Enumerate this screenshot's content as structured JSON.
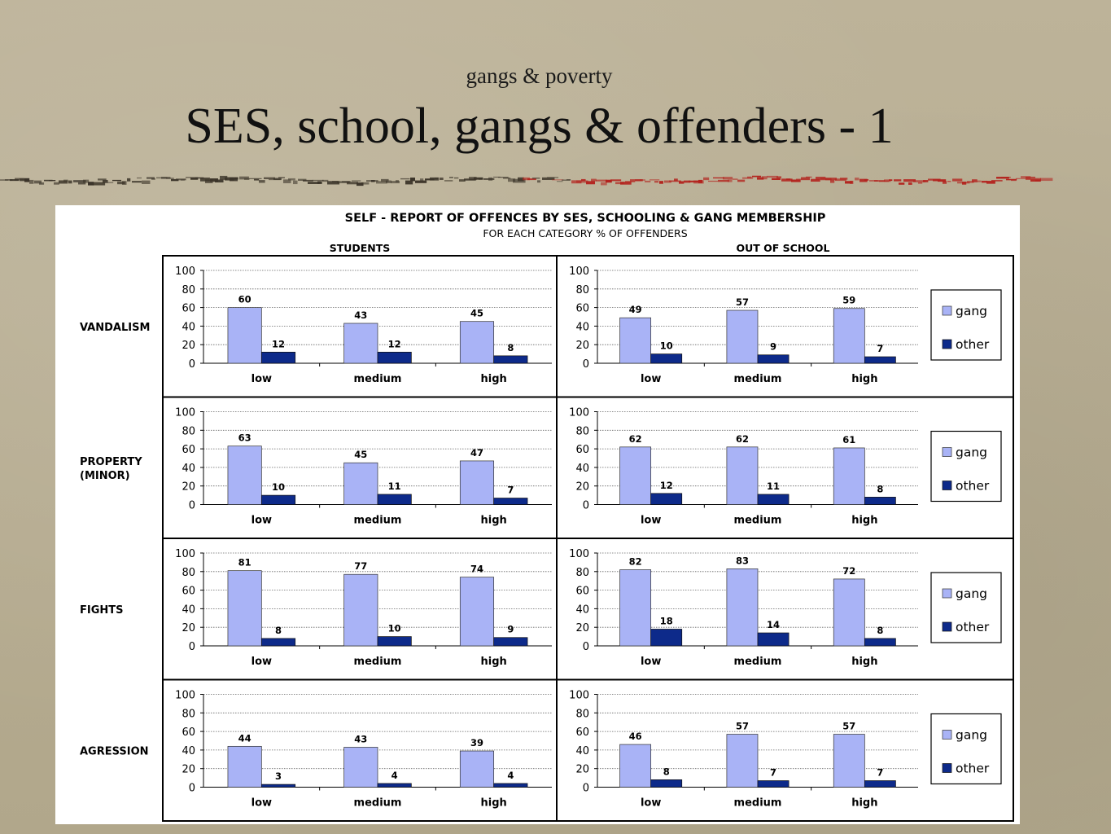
{
  "slide": {
    "subtitle": "gangs & poverty",
    "title": "SES, school, gangs & offenders - 1"
  },
  "colors": {
    "gang": "#a9b3f6",
    "other": "#0d2a8a",
    "divider_dark": "#3b3429",
    "divider_red": "#b3211c"
  },
  "chart_data": {
    "type": "bar",
    "title": "SELF - REPORT OF OFFENCES BY SES, SCHOOLING & GANG MEMBERSHIP",
    "subtitle": "FOR EACH CATEGORY % OF OFFENDERS",
    "columns": [
      "STUDENTS",
      "OUT OF SCHOOL"
    ],
    "categories": [
      "low",
      "medium",
      "high"
    ],
    "series_names": [
      "gang",
      "other"
    ],
    "ylim": [
      0,
      100
    ],
    "yticks": [
      0,
      20,
      40,
      60,
      80,
      100
    ],
    "grid": true,
    "legend": "right",
    "rows": [
      {
        "label": [
          "VANDALISM"
        ],
        "charts": [
          {
            "gang": [
              60,
              43,
              45
            ],
            "other": [
              12,
              12,
              8
            ]
          },
          {
            "gang": [
              49,
              57,
              59
            ],
            "other": [
              10,
              9,
              7
            ]
          }
        ]
      },
      {
        "label": [
          "PROPERTY",
          "(MINOR)"
        ],
        "charts": [
          {
            "gang": [
              63,
              45,
              47
            ],
            "other": [
              10,
              11,
              7
            ]
          },
          {
            "gang": [
              62,
              62,
              61
            ],
            "other": [
              12,
              11,
              8
            ]
          }
        ]
      },
      {
        "label": [
          "FIGHTS"
        ],
        "charts": [
          {
            "gang": [
              81,
              77,
              74
            ],
            "other": [
              8,
              10,
              9
            ]
          },
          {
            "gang": [
              82,
              83,
              72
            ],
            "other": [
              18,
              14,
              8
            ]
          }
        ]
      },
      {
        "label": [
          "AGRESSION"
        ],
        "charts": [
          {
            "gang": [
              44,
              43,
              39
            ],
            "other": [
              3,
              4,
              4
            ]
          },
          {
            "gang": [
              46,
              57,
              57
            ],
            "other": [
              8,
              7,
              7
            ]
          }
        ]
      }
    ]
  }
}
